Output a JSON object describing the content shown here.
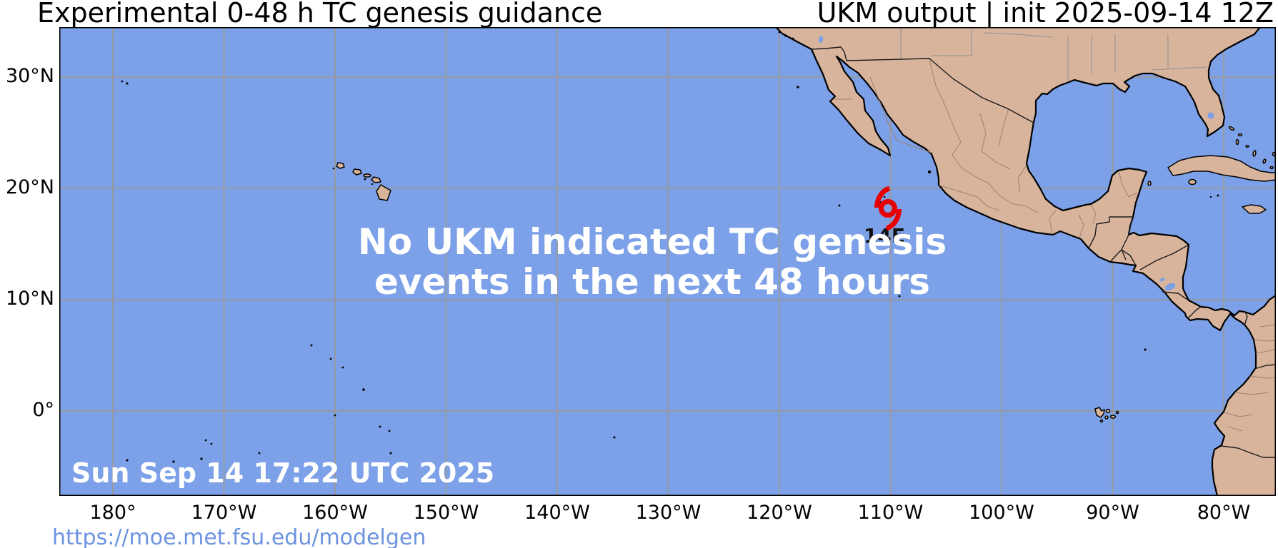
{
  "header": {
    "title": "Experimental 0-48 h TC genesis guidance",
    "model_info": "UKM output | init 2025-09-14 12Z"
  },
  "map": {
    "message_line1": "No UKM indicated TC genesis",
    "message_line2": "events in the next 48 hours",
    "timestamp": "Sun Sep 14 17:22 UTC 2025",
    "storm": {
      "label": "14E",
      "symbol": "tropical-cyclone"
    },
    "colors": {
      "ocean": "#7ca1e8",
      "land": "#d9b49d",
      "coastline": "#000000",
      "gridline": "#999999",
      "storm_red": "#e80000",
      "link_blue": "#6d93e0",
      "message_white": "#ffffff"
    }
  },
  "axes": {
    "x_tick_labels": [
      "180°",
      "170°W",
      "160°W",
      "150°W",
      "140°W",
      "130°W",
      "120°W",
      "110°W",
      "100°W",
      "90°W",
      "80°W"
    ],
    "y_tick_labels": [
      "30°N",
      "20°N",
      "10°N",
      "0°"
    ]
  },
  "footer": {
    "url": "https://moe.met.fsu.edu/modelgen"
  }
}
